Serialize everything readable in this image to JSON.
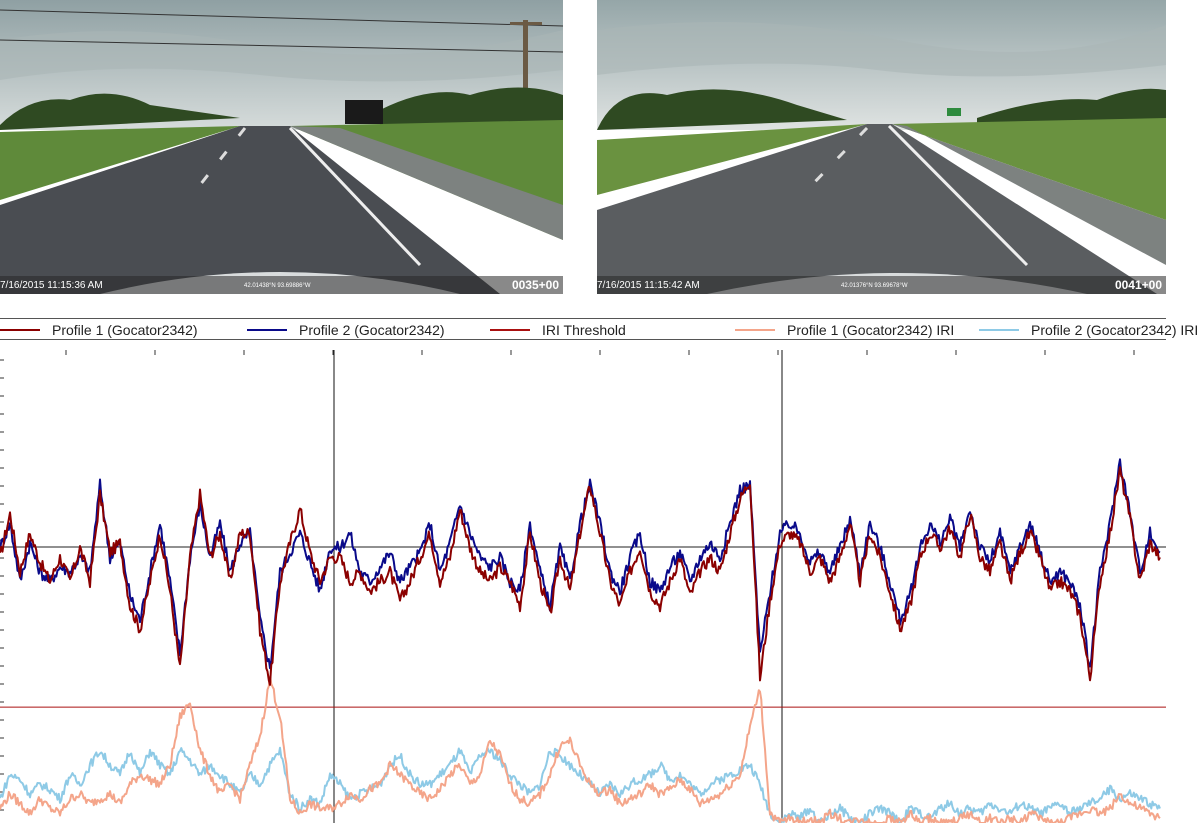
{
  "photos": [
    {
      "timestamp": "7/16/2015 11:15:36 AM",
      "gps": "42.01438°N  93.69886°W",
      "chainage": "0035+00",
      "colors": {
        "sky": "#b9c6c8",
        "grass": "#5f8a3a",
        "road": "#4a4d52"
      }
    },
    {
      "timestamp": "7/16/2015 11:15:42 AM",
      "gps": "42.01376°N  93.69678°W",
      "chainage": "0041+00",
      "colors": {
        "sky": "#c3ced0",
        "grass": "#6a9240",
        "road": "#5a5d60"
      }
    }
  ],
  "legend": [
    {
      "label": "Profile 1 (Gocator2342)",
      "color": "#8b0000",
      "icon": "line-swatch-icon"
    },
    {
      "label": "Profile 2 (Gocator2342)",
      "color": "#0a0a8a",
      "icon": "line-swatch-icon"
    },
    {
      "label": "IRI Threshold",
      "color": "#aa1111",
      "icon": "line-swatch-icon"
    },
    {
      "label": "Profile 1 (Gocator2342) IRI",
      "color": "#f4a58a",
      "icon": "line-swatch-icon"
    },
    {
      "label": "Profile 2 (Gocator2342) IRI",
      "color": "#8ecae6",
      "icon": "line-swatch-icon"
    }
  ],
  "chart_data": {
    "type": "line",
    "grid": false,
    "legend_position": "top",
    "threshold": 0.24,
    "x": [
      0,
      10,
      20,
      30,
      40,
      50,
      60,
      70,
      80,
      90,
      100,
      110,
      120,
      130,
      140,
      150,
      160,
      170,
      180,
      190,
      200,
      210,
      220,
      230,
      240,
      250,
      260,
      270,
      280,
      290,
      300,
      310,
      320,
      330,
      340,
      350,
      360,
      370,
      380,
      390,
      400,
      410,
      420,
      430,
      440,
      450,
      460,
      470,
      480,
      490,
      500,
      510,
      520,
      530,
      540,
      550,
      560,
      570,
      580,
      590,
      600,
      610,
      620,
      630,
      640,
      650,
      660,
      670,
      680,
      690,
      700,
      710,
      720,
      730,
      740,
      750,
      760,
      770,
      780,
      790,
      800,
      810,
      820,
      830,
      840,
      850,
      860,
      870,
      880,
      890,
      900,
      910,
      920,
      930,
      940,
      950,
      960,
      970,
      980,
      990,
      1000,
      1010,
      1020,
      1030,
      1040,
      1050,
      1060,
      1070,
      1080,
      1090,
      1100,
      1110,
      1120,
      1130,
      1140,
      1150,
      1160
    ],
    "series": [
      {
        "name": "Profile 1 (Gocator2342)",
        "color": "#8b0000",
        "values": [
          0.55,
          0.64,
          0.52,
          0.6,
          0.54,
          0.5,
          0.55,
          0.5,
          0.57,
          0.5,
          0.68,
          0.56,
          0.58,
          0.45,
          0.4,
          0.5,
          0.6,
          0.48,
          0.32,
          0.55,
          0.68,
          0.55,
          0.6,
          0.5,
          0.6,
          0.6,
          0.4,
          0.29,
          0.5,
          0.58,
          0.65,
          0.56,
          0.5,
          0.55,
          0.55,
          0.5,
          0.52,
          0.48,
          0.5,
          0.52,
          0.46,
          0.5,
          0.55,
          0.6,
          0.5,
          0.55,
          0.65,
          0.57,
          0.52,
          0.5,
          0.53,
          0.5,
          0.45,
          0.6,
          0.5,
          0.43,
          0.55,
          0.48,
          0.6,
          0.7,
          0.6,
          0.5,
          0.45,
          0.52,
          0.57,
          0.48,
          0.45,
          0.5,
          0.55,
          0.47,
          0.52,
          0.55,
          0.52,
          0.6,
          0.67,
          0.71,
          0.3,
          0.46,
          0.58,
          0.6,
          0.58,
          0.52,
          0.55,
          0.5,
          0.55,
          0.62,
          0.5,
          0.6,
          0.55,
          0.48,
          0.4,
          0.45,
          0.55,
          0.6,
          0.57,
          0.61,
          0.55,
          0.64,
          0.55,
          0.52,
          0.58,
          0.5,
          0.56,
          0.6,
          0.55,
          0.48,
          0.5,
          0.48,
          0.43,
          0.3,
          0.5,
          0.6,
          0.73,
          0.63,
          0.5,
          0.58,
          0.55
        ]
      },
      {
        "name": "Profile 2 (Gocator2342)",
        "color": "#0a0a8a",
        "values": [
          0.57,
          0.62,
          0.5,
          0.58,
          0.52,
          0.5,
          0.53,
          0.52,
          0.55,
          0.52,
          0.7,
          0.55,
          0.58,
          0.47,
          0.42,
          0.52,
          0.62,
          0.5,
          0.35,
          0.55,
          0.66,
          0.55,
          0.62,
          0.52,
          0.58,
          0.6,
          0.42,
          0.32,
          0.52,
          0.56,
          0.6,
          0.54,
          0.48,
          0.57,
          0.57,
          0.6,
          0.52,
          0.5,
          0.53,
          0.56,
          0.5,
          0.53,
          0.56,
          0.62,
          0.52,
          0.58,
          0.66,
          0.6,
          0.55,
          0.53,
          0.55,
          0.5,
          0.48,
          0.62,
          0.52,
          0.45,
          0.57,
          0.5,
          0.62,
          0.7,
          0.62,
          0.52,
          0.48,
          0.55,
          0.6,
          0.5,
          0.48,
          0.53,
          0.56,
          0.5,
          0.55,
          0.58,
          0.55,
          0.62,
          0.69,
          0.7,
          0.35,
          0.48,
          0.6,
          0.62,
          0.6,
          0.54,
          0.56,
          0.52,
          0.57,
          0.63,
          0.52,
          0.62,
          0.57,
          0.5,
          0.42,
          0.47,
          0.57,
          0.62,
          0.58,
          0.63,
          0.57,
          0.65,
          0.57,
          0.54,
          0.6,
          0.52,
          0.57,
          0.62,
          0.56,
          0.5,
          0.52,
          0.5,
          0.45,
          0.32,
          0.52,
          0.62,
          0.75,
          0.64,
          0.52,
          0.6,
          0.56
        ]
      },
      {
        "name": "Profile 1 (Gocator2342) IRI",
        "color": "#f4a58a",
        "values": [
          0.03,
          0.06,
          0.04,
          0.02,
          0.05,
          0.03,
          0.02,
          0.05,
          0.06,
          0.04,
          0.05,
          0.06,
          0.04,
          0.08,
          0.1,
          0.09,
          0.08,
          0.12,
          0.22,
          0.25,
          0.15,
          0.1,
          0.06,
          0.08,
          0.05,
          0.12,
          0.18,
          0.3,
          0.22,
          0.05,
          0.02,
          0.04,
          0.03,
          0.03,
          0.04,
          0.06,
          0.05,
          0.07,
          0.08,
          0.12,
          0.1,
          0.08,
          0.06,
          0.05,
          0.07,
          0.1,
          0.12,
          0.08,
          0.1,
          0.17,
          0.14,
          0.08,
          0.05,
          0.04,
          0.06,
          0.1,
          0.16,
          0.17,
          0.12,
          0.08,
          0.06,
          0.07,
          0.04,
          0.05,
          0.06,
          0.08,
          0.06,
          0.07,
          0.09,
          0.07,
          0.04,
          0.05,
          0.06,
          0.08,
          0.1,
          0.2,
          0.28,
          0.02,
          0.0,
          0.01,
          0.0,
          0.01,
          0.0,
          0.02,
          0.01,
          0.0,
          0.01,
          0.0,
          0.0,
          0.01,
          0.0,
          0.02,
          0.0,
          0.01,
          0.0,
          0.0,
          0.01,
          0.02,
          0.0,
          0.01,
          0.0,
          0.01,
          0.0,
          0.02,
          0.01,
          0.0,
          0.0,
          0.01,
          0.02,
          0.03,
          0.02,
          0.03,
          0.06,
          0.04,
          0.03,
          0.02,
          0.01
        ]
      },
      {
        "name": "Profile 2 (Gocator2342) IRI",
        "color": "#8ecae6",
        "values": [
          0.05,
          0.1,
          0.09,
          0.06,
          0.08,
          0.07,
          0.05,
          0.1,
          0.08,
          0.12,
          0.15,
          0.12,
          0.1,
          0.15,
          0.1,
          0.15,
          0.12,
          0.1,
          0.15,
          0.13,
          0.1,
          0.12,
          0.1,
          0.08,
          0.06,
          0.1,
          0.08,
          0.12,
          0.15,
          0.06,
          0.03,
          0.05,
          0.04,
          0.1,
          0.08,
          0.05,
          0.06,
          0.07,
          0.08,
          0.12,
          0.14,
          0.1,
          0.08,
          0.08,
          0.1,
          0.12,
          0.15,
          0.1,
          0.14,
          0.15,
          0.13,
          0.1,
          0.08,
          0.06,
          0.08,
          0.15,
          0.14,
          0.12,
          0.1,
          0.08,
          0.06,
          0.08,
          0.06,
          0.08,
          0.09,
          0.1,
          0.12,
          0.09,
          0.1,
          0.08,
          0.06,
          0.08,
          0.09,
          0.1,
          0.11,
          0.12,
          0.08,
          0.02,
          0.0,
          0.02,
          0.01,
          0.03,
          0.0,
          0.02,
          0.03,
          0.01,
          0.0,
          0.02,
          0.03,
          0.02,
          0.0,
          0.03,
          0.02,
          0.01,
          0.03,
          0.04,
          0.02,
          0.03,
          0.02,
          0.04,
          0.03,
          0.02,
          0.04,
          0.03,
          0.02,
          0.03,
          0.04,
          0.02,
          0.03,
          0.04,
          0.05,
          0.07,
          0.05,
          0.06,
          0.05,
          0.04,
          0.03
        ]
      }
    ]
  }
}
